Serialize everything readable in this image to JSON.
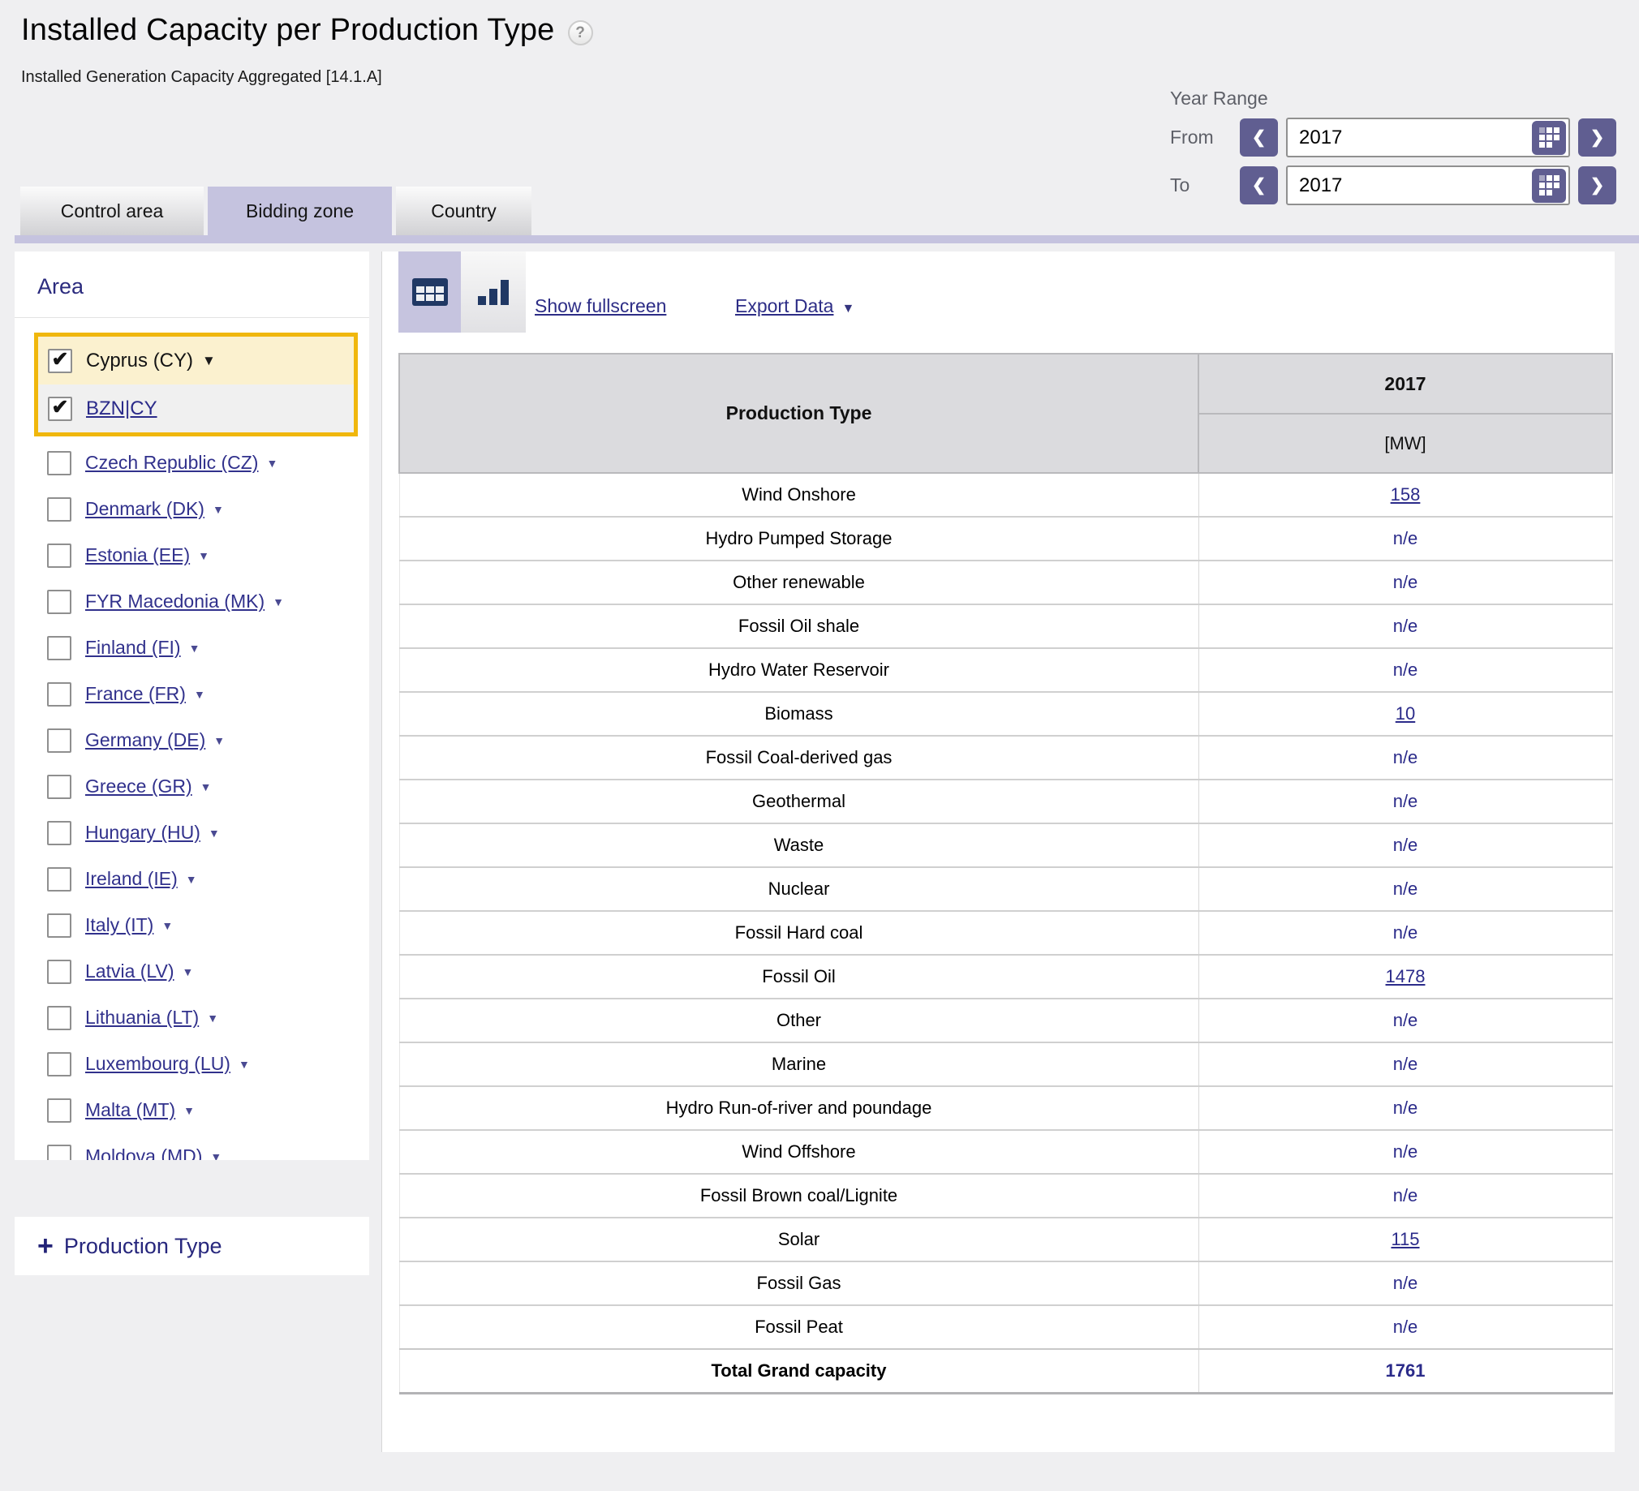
{
  "page": {
    "title": "Installed Capacity per Production Type",
    "subtitle": "Installed Generation Capacity Aggregated [14.1.A]",
    "help_label": "?"
  },
  "year_range": {
    "label": "Year Range",
    "from_label": "From",
    "to_label": "To",
    "from_value": "2017",
    "to_value": "2017",
    "prev_glyph": "❮",
    "next_glyph": "❯"
  },
  "tabs": [
    {
      "label": "Control area",
      "active": false
    },
    {
      "label": "Bidding zone",
      "active": true
    },
    {
      "label": "Country",
      "active": false
    }
  ],
  "sidebar": {
    "area_title": "Area",
    "selected_group": {
      "country_label": "Cyprus (CY)",
      "country_checked": true,
      "zone_label": "BZN|CY",
      "zone_checked": true
    },
    "countries": [
      "Czech Republic (CZ)",
      "Denmark (DK)",
      "Estonia (EE)",
      "FYR Macedonia (MK)",
      "Finland (FI)",
      "France (FR)",
      "Germany (DE)",
      "Greece (GR)",
      "Hungary (HU)",
      "Ireland (IE)",
      "Italy (IT)",
      "Latvia (LV)",
      "Lithuania (LT)",
      "Luxembourg (LU)",
      "Malta (MT)",
      "Moldova (MD)"
    ],
    "expand_glyph": "+",
    "production_type_label": "Production Type"
  },
  "toolbar": {
    "show_fullscreen": "Show fullscreen",
    "export_data": "Export Data"
  },
  "table": {
    "col1_header": "Production Type",
    "year_header": "2017",
    "unit_header": "[MW]",
    "rows": [
      {
        "type": "Wind Onshore",
        "value": "158",
        "link": true
      },
      {
        "type": "Hydro Pumped Storage",
        "value": "n/e",
        "link": false
      },
      {
        "type": "Other renewable",
        "value": "n/e",
        "link": false
      },
      {
        "type": "Fossil Oil shale",
        "value": "n/e",
        "link": false
      },
      {
        "type": "Hydro Water Reservoir",
        "value": "n/e",
        "link": false
      },
      {
        "type": "Biomass",
        "value": "10",
        "link": true
      },
      {
        "type": "Fossil Coal-derived gas",
        "value": "n/e",
        "link": false
      },
      {
        "type": "Geothermal",
        "value": "n/e",
        "link": false
      },
      {
        "type": "Waste",
        "value": "n/e",
        "link": false
      },
      {
        "type": "Nuclear",
        "value": "n/e",
        "link": false
      },
      {
        "type": "Fossil Hard coal",
        "value": "n/e",
        "link": false
      },
      {
        "type": "Fossil Oil",
        "value": "1478",
        "link": true
      },
      {
        "type": "Other",
        "value": "n/e",
        "link": false
      },
      {
        "type": "Marine",
        "value": "n/e",
        "link": false
      },
      {
        "type": "Hydro Run-of-river and poundage",
        "value": "n/e",
        "link": false
      },
      {
        "type": "Wind Offshore",
        "value": "n/e",
        "link": false
      },
      {
        "type": "Fossil Brown coal/Lignite",
        "value": "n/e",
        "link": false
      },
      {
        "type": "Solar",
        "value": "115",
        "link": true
      },
      {
        "type": "Fossil Gas",
        "value": "n/e",
        "link": false
      },
      {
        "type": "Fossil Peat",
        "value": "n/e",
        "link": false
      }
    ],
    "total": {
      "label": "Total Grand capacity",
      "value": "1761"
    }
  },
  "colors": {
    "accent_purple": "#605e91",
    "light_purple": "#c5c3df",
    "navy_link": "#31318c",
    "icon_navy": "#203864",
    "gold_highlight": "#f0b70d",
    "cream_highlight": "#fbf1cf",
    "header_gray": "#dbdbde"
  }
}
